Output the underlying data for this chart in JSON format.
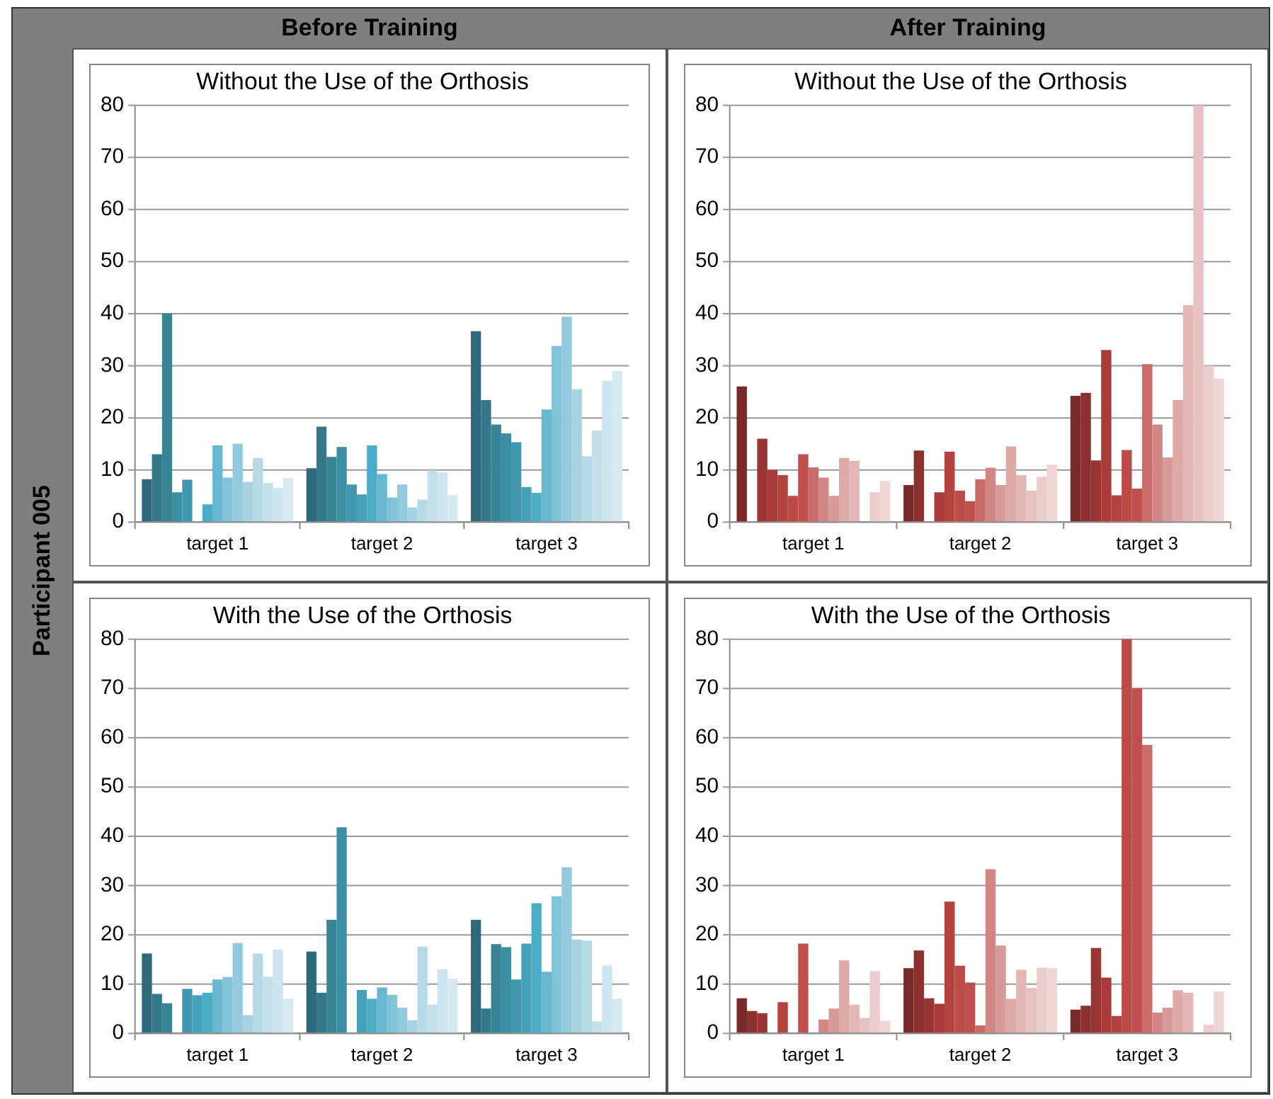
{
  "chart_data": [
    {
      "type": "bar",
      "title": "Without the Use of the Orthosis",
      "annotations": [
        "Before Training",
        "Participant 005"
      ],
      "categories": [
        "target 1",
        "target 2",
        "target 3"
      ],
      "ylim": [
        0,
        80
      ],
      "yticks": [
        0,
        10,
        20,
        30,
        40,
        50,
        60,
        70,
        80
      ],
      "grid": "y",
      "legend": false,
      "series": [
        {
          "color": "#2f6a7c",
          "values": [
            8.2,
            10.3,
            36.6
          ]
        },
        {
          "color": "#347788",
          "values": [
            13,
            18.3,
            23.4
          ]
        },
        {
          "color": "#388494",
          "values": [
            40,
            12.5,
            18.7
          ]
        },
        {
          "color": "#3c8fa1",
          "values": [
            5.7,
            14.4,
            17
          ]
        },
        {
          "color": "#4198ae",
          "values": [
            8.1,
            7.2,
            15.3
          ]
        },
        {
          "color": "#46a2ba",
          "values": [
            null,
            5.3,
            6.7
          ]
        },
        {
          "color": "#4bacc6",
          "values": [
            3.4,
            14.7,
            5.6
          ]
        },
        {
          "color": "#66b7cf",
          "values": [
            14.7,
            9.2,
            21.6
          ]
        },
        {
          "color": "#80c2d7",
          "values": [
            8.5,
            4.7,
            33.8
          ]
        },
        {
          "color": "#93cadd",
          "values": [
            15,
            7.2,
            39.4
          ]
        },
        {
          "color": "#a6d2e2",
          "values": [
            7.7,
            2.8,
            25.5
          ]
        },
        {
          "color": "#b5d9e6",
          "values": [
            12.3,
            4.3,
            12.6
          ]
        },
        {
          "color": "#c3e0eb",
          "values": [
            7.5,
            9.9,
            17.6
          ]
        },
        {
          "color": "#cde5ee",
          "values": [
            6.5,
            9.5,
            27.1
          ]
        },
        {
          "color": "#d7eaf1",
          "values": [
            8.4,
            5.2,
            29
          ]
        }
      ]
    },
    {
      "type": "bar",
      "title": "Without the Use of the Orthosis",
      "annotations": [
        "After Training"
      ],
      "categories": [
        "target 1",
        "target 2",
        "target 3"
      ],
      "ylim": [
        0,
        80
      ],
      "yticks": [
        0,
        10,
        20,
        30,
        40,
        50,
        60,
        70,
        80
      ],
      "grid": "y",
      "legend": false,
      "series": [
        {
          "color": "#7a2a28",
          "values": [
            26,
            7.1,
            24.2
          ]
        },
        {
          "color": "#8a302e",
          "values": [
            null,
            13.7,
            24.8
          ]
        },
        {
          "color": "#993634",
          "values": [
            16,
            null,
            11.8
          ]
        },
        {
          "color": "#a93c3a",
          "values": [
            10,
            5.7,
            33
          ]
        },
        {
          "color": "#b44340",
          "values": [
            9,
            13.5,
            5.1
          ]
        },
        {
          "color": "#bc4a47",
          "values": [
            5,
            6,
            13.8
          ]
        },
        {
          "color": "#c0504d",
          "values": [
            13,
            4,
            6.4
          ]
        },
        {
          "color": "#c96c69",
          "values": [
            10.5,
            8.2,
            30.3
          ]
        },
        {
          "color": "#d18784",
          "values": [
            8.5,
            10.4,
            18.7
          ]
        },
        {
          "color": "#d79a98",
          "values": [
            5,
            7.1,
            12.4
          ]
        },
        {
          "color": "#ddaaa8",
          "values": [
            12.3,
            14.5,
            23.4
          ]
        },
        {
          "color": "#e2b7b5",
          "values": [
            11.7,
            9,
            41.6
          ]
        },
        {
          "color": "#e6c3c2",
          "values": [
            null,
            6,
            80
          ]
        },
        {
          "color": "#eacdcc",
          "values": [
            5.7,
            8.7,
            30
          ]
        },
        {
          "color": "#eed6d5",
          "values": [
            7.9,
            11,
            27.5
          ]
        }
      ]
    },
    {
      "type": "bar",
      "title": "With the Use of the Orthosis",
      "categories": [
        "target 1",
        "target 2",
        "target 3"
      ],
      "ylim": [
        0,
        80
      ],
      "yticks": [
        0,
        10,
        20,
        30,
        40,
        50,
        60,
        70,
        80
      ],
      "grid": "y",
      "legend": false,
      "series": [
        {
          "color": "#2f6a7c",
          "values": [
            16.2,
            16.6,
            23
          ]
        },
        {
          "color": "#347788",
          "values": [
            8,
            8.2,
            5
          ]
        },
        {
          "color": "#388494",
          "values": [
            6.1,
            23,
            18.1
          ]
        },
        {
          "color": "#3c8fa1",
          "values": [
            null,
            41.8,
            17.5
          ]
        },
        {
          "color": "#4198ae",
          "values": [
            9,
            null,
            10.9
          ]
        },
        {
          "color": "#46a2ba",
          "values": [
            7.7,
            8.8,
            18.2
          ]
        },
        {
          "color": "#4bacc6",
          "values": [
            8.2,
            7,
            26.4
          ]
        },
        {
          "color": "#66b7cf",
          "values": [
            10.9,
            9.3,
            12.5
          ]
        },
        {
          "color": "#80c2d7",
          "values": [
            11.4,
            7.8,
            27.8
          ]
        },
        {
          "color": "#93cadd",
          "values": [
            18.3,
            5.2,
            33.7
          ]
        },
        {
          "color": "#a6d2e2",
          "values": [
            3.7,
            2.6,
            19
          ]
        },
        {
          "color": "#b5d9e6",
          "values": [
            16.2,
            17.6,
            18.8
          ]
        },
        {
          "color": "#c3e0eb",
          "values": [
            11.5,
            5.8,
            2.4
          ]
        },
        {
          "color": "#cde5ee",
          "values": [
            17,
            13,
            13.8
          ]
        },
        {
          "color": "#d7eaf1",
          "values": [
            7,
            11.1,
            7
          ]
        }
      ]
    },
    {
      "type": "bar",
      "title": "With the Use of the Orthosis",
      "categories": [
        "target 1",
        "target 2",
        "target 3"
      ],
      "ylim": [
        0,
        80
      ],
      "yticks": [
        0,
        10,
        20,
        30,
        40,
        50,
        60,
        70,
        80
      ],
      "grid": "y",
      "legend": false,
      "series": [
        {
          "color": "#7a2a28",
          "values": [
            7.1,
            13.2,
            4.8
          ]
        },
        {
          "color": "#8a302e",
          "values": [
            4.5,
            16.8,
            5.6
          ]
        },
        {
          "color": "#993634",
          "values": [
            4.1,
            7.1,
            17.3
          ]
        },
        {
          "color": "#a93c3a",
          "values": [
            null,
            6,
            11.3
          ]
        },
        {
          "color": "#b44340",
          "values": [
            6.3,
            26.7,
            3.5
          ]
        },
        {
          "color": "#bc4a47",
          "values": [
            null,
            13.7,
            80
          ]
        },
        {
          "color": "#c0504d",
          "values": [
            18.2,
            10.3,
            70
          ]
        },
        {
          "color": "#c96c69",
          "values": [
            null,
            1.6,
            58.5
          ]
        },
        {
          "color": "#d18784",
          "values": [
            2.8,
            33.3,
            4.2
          ]
        },
        {
          "color": "#d79a98",
          "values": [
            5,
            17.8,
            5.2
          ]
        },
        {
          "color": "#ddaaa8",
          "values": [
            14.8,
            7,
            8.7
          ]
        },
        {
          "color": "#e2b7b5",
          "values": [
            5.8,
            12.9,
            8.2
          ]
        },
        {
          "color": "#e6c3c2",
          "values": [
            3.1,
            9.2,
            null
          ]
        },
        {
          "color": "#eacdcc",
          "values": [
            12.6,
            13.3,
            1.7
          ]
        },
        {
          "color": "#eed6d5",
          "values": [
            2.5,
            13.2,
            8.5
          ]
        }
      ]
    }
  ]
}
